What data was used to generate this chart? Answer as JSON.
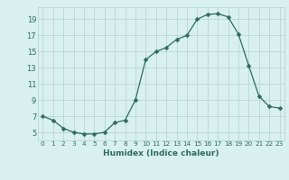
{
  "x": [
    0,
    1,
    2,
    3,
    4,
    5,
    6,
    7,
    8,
    9,
    10,
    11,
    12,
    13,
    14,
    15,
    16,
    17,
    18,
    19,
    20,
    21,
    22,
    23
  ],
  "y": [
    7.0,
    6.5,
    5.5,
    5.0,
    4.8,
    4.8,
    5.0,
    6.2,
    6.5,
    9.0,
    14.0,
    15.0,
    15.5,
    16.5,
    17.0,
    19.0,
    19.6,
    19.7,
    19.3,
    17.2,
    13.3,
    9.5,
    8.2,
    8.0
  ],
  "line_color": "#2e6b5e",
  "marker": "D",
  "marker_size": 2.5,
  "bg_color": "#d8f0ee",
  "grid_color": "#b8d8d4",
  "xlabel": "Humidex (Indice chaleur)",
  "xlim": [
    -0.5,
    23.5
  ],
  "ylim": [
    4.0,
    20.5
  ],
  "yticks": [
    5,
    7,
    9,
    11,
    13,
    15,
    17,
    19
  ],
  "xticks": [
    0,
    1,
    2,
    3,
    4,
    5,
    6,
    7,
    8,
    9,
    10,
    11,
    12,
    13,
    14,
    15,
    16,
    17,
    18,
    19,
    20,
    21,
    22,
    23
  ]
}
